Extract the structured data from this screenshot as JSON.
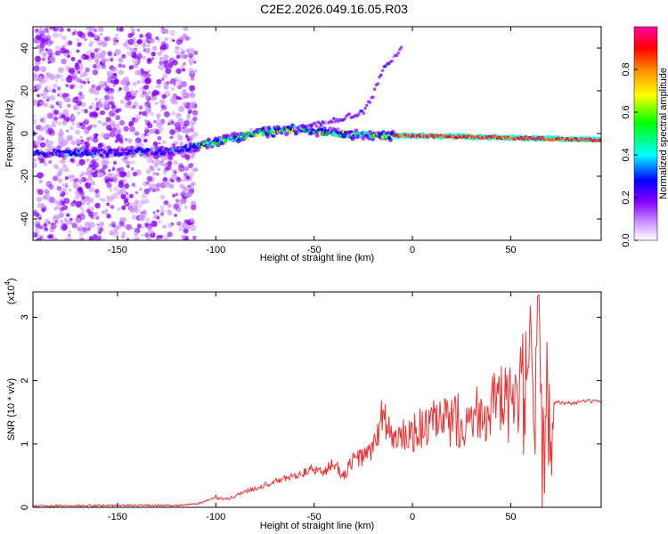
{
  "title": "C2E2.2026.049.16.05.R03",
  "chart_data": [
    {
      "type": "heatmap",
      "xlabel": "Height of straight line (km)",
      "ylabel": "Frequency (Hz)",
      "xlim": [
        -193,
        96
      ],
      "ylim": [
        -50,
        50
      ],
      "xticks": [
        -150,
        -100,
        -50,
        0,
        50
      ],
      "xtick_labels": [
        "-150",
        "-100",
        "-50",
        "0",
        "50"
      ],
      "yticks": [
        -40,
        -20,
        0,
        20,
        40
      ],
      "ytick_labels": [
        "-40",
        "-20",
        "0",
        "20",
        "40"
      ],
      "colorbar": {
        "label": "Normalized spectral amplitude",
        "range": [
          0,
          1
        ],
        "ticks": [
          0,
          0.2,
          0.4,
          0.6,
          0.8
        ],
        "tick_labels": [
          "0.0",
          "0.2",
          "0.4",
          "0.6",
          "0.8"
        ],
        "colors": [
          "#ffffff",
          "#cc99ff",
          "#8800ff",
          "#0000ff",
          "#00ffff",
          "#00ff00",
          "#ffff00",
          "#ff8800",
          "#ff0000",
          "#ff00aa"
        ]
      },
      "features": {
        "noise_region_x": [
          -193,
          -110
        ],
        "main_band_points": [
          [
            -193,
            -9
          ],
          [
            -160,
            -9
          ],
          [
            -120,
            -8
          ],
          [
            -100,
            -4
          ],
          [
            -80,
            0
          ],
          [
            -60,
            2
          ],
          [
            -40,
            0
          ],
          [
            -20,
            -1
          ],
          [
            0,
            -1
          ],
          [
            50,
            -2
          ],
          [
            96,
            -3
          ]
        ],
        "upper_branch_points": [
          [
            -60,
            2
          ],
          [
            -40,
            6
          ],
          [
            -25,
            10
          ],
          [
            -20,
            18
          ],
          [
            -15,
            30
          ],
          [
            -5,
            40
          ]
        ]
      }
    },
    {
      "type": "line",
      "xlabel": "Height of straight line (km)",
      "ylabel": "SNR (10 * v/v)",
      "yscale_note": "(x10",
      "yscale_exp": "4",
      "xlim": [
        -193,
        96
      ],
      "ylim": [
        0,
        3.4
      ],
      "xticks": [
        -150,
        -100,
        -50,
        0,
        50
      ],
      "xtick_labels": [
        "-150",
        "-100",
        "-50",
        "0",
        "50"
      ],
      "yticks": [
        0,
        1,
        2,
        3
      ],
      "ytick_labels": [
        "0",
        "1",
        "2",
        "3"
      ],
      "color": "#ee3333",
      "x": [
        -193,
        -150,
        -120,
        -110,
        -100,
        -95,
        -85,
        -75,
        -65,
        -55,
        -50,
        -45,
        -40,
        -35,
        -30,
        -25,
        -20,
        -15,
        -10,
        -5,
        0,
        5,
        10,
        20,
        30,
        40,
        50,
        55,
        58,
        60,
        62,
        64,
        66,
        68,
        70,
        72,
        80,
        90,
        96
      ],
      "y": [
        0.02,
        0.03,
        0.03,
        0.05,
        0.15,
        0.12,
        0.25,
        0.35,
        0.45,
        0.55,
        0.6,
        0.55,
        0.7,
        0.5,
        0.75,
        0.8,
        0.9,
        1.5,
        1.05,
        1.1,
        1.15,
        1.25,
        1.3,
        1.35,
        1.45,
        1.6,
        1.62,
        1.65,
        1.65,
        2.5,
        0.5,
        3.1,
        0.3,
        2.0,
        1.7,
        1.66,
        1.64,
        1.68,
        1.65
      ]
    }
  ]
}
